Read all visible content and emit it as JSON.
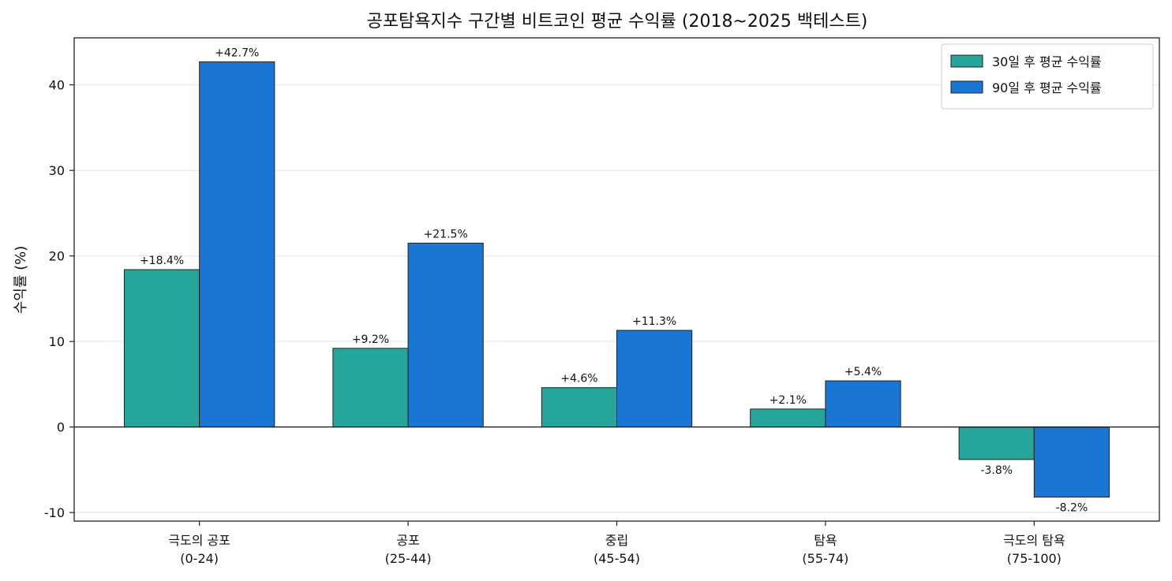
{
  "chart_data": {
    "type": "bar",
    "title": "공포탐욕지수 구간별 비트코인 평균 수익률 (2018~2025 백테스트)",
    "xlabel": "",
    "ylabel": "수익률 (%)",
    "ylim": [
      -11,
      45.5
    ],
    "yticks": [
      -10,
      0,
      10,
      20,
      30,
      40
    ],
    "grid": true,
    "legend_position": "top-right",
    "categories": [
      [
        "극도의 공포",
        "(0-24)"
      ],
      [
        "공포",
        "(25-44)"
      ],
      [
        "중립",
        "(45-54)"
      ],
      [
        "탐욕",
        "(55-74)"
      ],
      [
        "극도의 탐욕",
        "(75-100)"
      ]
    ],
    "series": [
      {
        "name": "30일 후 평균 수익률",
        "color": "#26a69a",
        "values": [
          18.4,
          9.2,
          4.6,
          2.1,
          -3.8
        ],
        "labels": [
          "+18.4%",
          "+9.2%",
          "+4.6%",
          "+2.1%",
          "-3.8%"
        ]
      },
      {
        "name": "90일 후 평균 수익률",
        "color": "#1976d2",
        "values": [
          42.7,
          21.5,
          11.3,
          5.4,
          -8.2
        ],
        "labels": [
          "+42.7%",
          "+21.5%",
          "+11.3%",
          "+5.4%",
          "-8.2%"
        ]
      }
    ]
  }
}
